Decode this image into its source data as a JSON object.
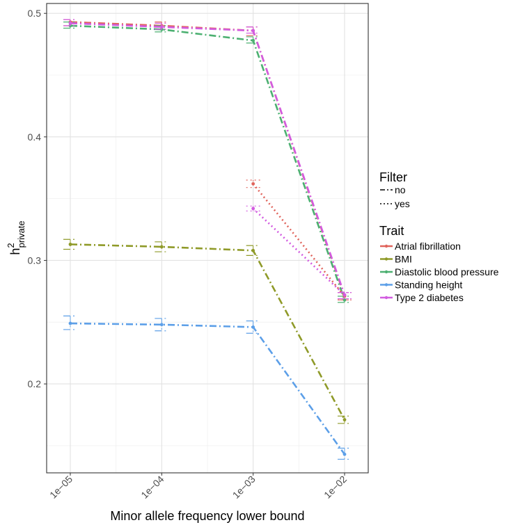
{
  "chart_data": {
    "type": "line",
    "xlabel": "Minor allele frequency lower bound",
    "ylabel_main": "h",
    "ylabel_sup": "2",
    "ylabel_sub": "private",
    "x_categories": [
      "1e−05",
      "1e−04",
      "1e−03",
      "1e−02"
    ],
    "y_ticks": [
      0.2,
      0.3,
      0.4,
      0.5
    ],
    "y_tick_labels": [
      "0.2",
      "0.3",
      "0.4",
      "0.5"
    ],
    "ylim": [
      0.128,
      0.508
    ],
    "grid": true,
    "legend_position": "right",
    "legend_filter": {
      "title": "Filter",
      "items": [
        {
          "label": "no",
          "dash": "dashdot"
        },
        {
          "label": "yes",
          "dash": "dotted"
        }
      ]
    },
    "legend_trait": {
      "title": "Trait",
      "items": [
        {
          "label": "Atrial fibrillation",
          "color": "#E0645C"
        },
        {
          "label": "BMI",
          "color": "#8F9A28"
        },
        {
          "label": "Diastolic blood pressure",
          "color": "#4CB071"
        },
        {
          "label": "Standing height",
          "color": "#5C9FE8"
        },
        {
          "label": "Type 2 diabetes",
          "color": "#D25CE0"
        }
      ]
    },
    "series": [
      {
        "name": "Atrial fibrillation",
        "filter": "no",
        "color": "#E0645C",
        "points": [
          {
            "x": "1e−05",
            "y": 0.493,
            "lo": 0.49,
            "hi": 0.495
          },
          {
            "x": "1e−04",
            "y": 0.49,
            "lo": 0.487,
            "hi": 0.493
          },
          {
            "x": "1e−03",
            "y": 0.486,
            "lo": 0.482,
            "hi": 0.489
          },
          {
            "x": "1e−02",
            "y": 0.271,
            "lo": 0.268,
            "hi": 0.274
          }
        ]
      },
      {
        "name": "BMI",
        "filter": "no",
        "color": "#8F9A28",
        "points": [
          {
            "x": "1e−05",
            "y": 0.313,
            "lo": 0.309,
            "hi": 0.317
          },
          {
            "x": "1e−04",
            "y": 0.311,
            "lo": 0.307,
            "hi": 0.315
          },
          {
            "x": "1e−03",
            "y": 0.308,
            "lo": 0.304,
            "hi": 0.312
          },
          {
            "x": "1e−02",
            "y": 0.171,
            "lo": 0.168,
            "hi": 0.174
          }
        ]
      },
      {
        "name": "Diastolic blood pressure",
        "filter": "no",
        "color": "#4CB071",
        "points": [
          {
            "x": "1e−05",
            "y": 0.49,
            "lo": 0.488,
            "hi": 0.493
          },
          {
            "x": "1e−04",
            "y": 0.487,
            "lo": 0.485,
            "hi": 0.49
          },
          {
            "x": "1e−03",
            "y": 0.478,
            "lo": 0.476,
            "hi": 0.481
          },
          {
            "x": "1e−02",
            "y": 0.268,
            "lo": 0.266,
            "hi": 0.271
          }
        ]
      },
      {
        "name": "Standing height",
        "filter": "no",
        "color": "#5C9FE8",
        "points": [
          {
            "x": "1e−05",
            "y": 0.249,
            "lo": 0.244,
            "hi": 0.255
          },
          {
            "x": "1e−04",
            "y": 0.248,
            "lo": 0.243,
            "hi": 0.253
          },
          {
            "x": "1e−03",
            "y": 0.246,
            "lo": 0.241,
            "hi": 0.251
          },
          {
            "x": "1e−02",
            "y": 0.143,
            "lo": 0.139,
            "hi": 0.148
          }
        ]
      },
      {
        "name": "Type 2 diabetes",
        "filter": "no",
        "color": "#D25CE0",
        "points": [
          {
            "x": "1e−05",
            "y": 0.492,
            "lo": 0.49,
            "hi": 0.495
          },
          {
            "x": "1e−04",
            "y": 0.489,
            "lo": 0.487,
            "hi": 0.492
          },
          {
            "x": "1e−03",
            "y": 0.486,
            "lo": 0.484,
            "hi": 0.489
          },
          {
            "x": "1e−02",
            "y": 0.272,
            "lo": 0.269,
            "hi": 0.274
          }
        ]
      },
      {
        "name": "Atrial fibrillation",
        "filter": "yes",
        "color": "#E0645C",
        "points": [
          {
            "x": "1e−03",
            "y": 0.362,
            "lo": 0.359,
            "hi": 0.365
          },
          {
            "x": "1e−02",
            "y": 0.271,
            "lo": 0.268,
            "hi": 0.274
          }
        ]
      },
      {
        "name": "Type 2 diabetes",
        "filter": "yes",
        "color": "#D25CE0",
        "points": [
          {
            "x": "1e−03",
            "y": 0.342,
            "lo": 0.34,
            "hi": 0.344
          },
          {
            "x": "1e−02",
            "y": 0.272,
            "lo": 0.269,
            "hi": 0.274
          }
        ]
      }
    ]
  }
}
